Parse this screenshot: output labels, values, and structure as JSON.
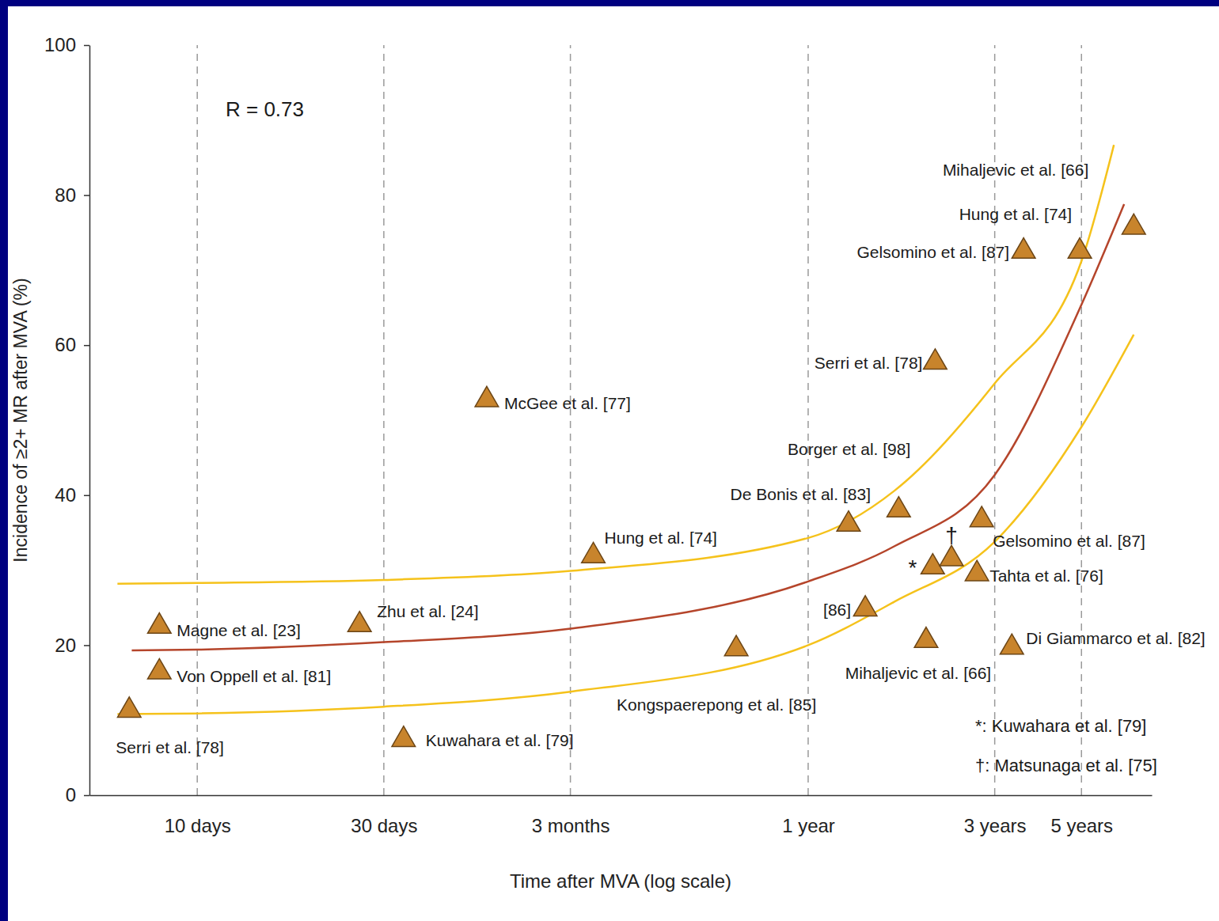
{
  "chart_data": {
    "type": "scatter",
    "x_label": "Time after MVA (log scale)",
    "y_label": "Incidence of ≥2+ MR after MVA (%)",
    "annotations": [
      "R = 0.73",
      "*: Kuwahara et al. [79]",
      "†: Matsunaga et al. [75]"
    ],
    "log": "x",
    "grid": true,
    "xlim": [
      5.3,
      2760
    ],
    "xticks": [
      {
        "value": 10,
        "label": "10 days"
      },
      {
        "value": 30,
        "label": "30 days"
      },
      {
        "value": 90,
        "label": "3 months"
      },
      {
        "value": 365,
        "label": "1 year"
      },
      {
        "value": 1095,
        "label": "3 years"
      },
      {
        "value": 1825,
        "label": "5 years"
      }
    ],
    "ylim": [
      0,
      100
    ],
    "yticks": [
      0,
      20,
      40,
      60,
      80,
      100
    ],
    "series": [
      {
        "type": "scatter",
        "marker": "triangle",
        "color": "#c8842c",
        "x": [
          6.7,
          8.0,
          8.0,
          26,
          55,
          33.7,
          103,
          239,
          511,
          463,
          622,
          771,
          760,
          849,
          1014,
          986,
          731,
          1211,
          1298,
          1807,
          2483
        ],
        "values": [
          11.3,
          16.4,
          22.5,
          22.7,
          52.7,
          7.4,
          31.9,
          19.5,
          24.8,
          36.1,
          38.0,
          57.7,
          30.4,
          31.5,
          36.7,
          29.5,
          20.6,
          19.7,
          72.5,
          72.5,
          75.7
        ],
        "labels": [
          "Serri et al. [78]",
          "Von Oppell et al. [81]",
          "Magne et al. [23]",
          "Zhu et al. [24]",
          "McGee et al. [77]",
          "Kuwahara et al. [79]",
          "Hung et al. [74]",
          "Kongspaerepong et al. [85]",
          "[86]",
          "De Bonis et al. [83]",
          "Borger et al. [98]",
          "Serri et al. [78]",
          "*",
          "†",
          "Gelsomino et al. [87]",
          "Tahta et al. [76]",
          "Mihaljevic et al. [66]",
          "Di Giammarco et al. [82]",
          "Gelsomino et al. [87]",
          "Hung et al. [74]",
          "Mihaljevic et al. [66]"
        ]
      },
      {
        "type": "line",
        "color": "#b5452b",
        "x": [
          6.8,
          10,
          30,
          90,
          365,
          607,
          1095,
          1825,
          2346
        ],
        "values": [
          19.3,
          19.4,
          20.4,
          22.2,
          28.5,
          33.2,
          42.7,
          65.4,
          78.8
        ]
      },
      {
        "type": "line",
        "color": "#f5c21b",
        "x": [
          6.25,
          10,
          30,
          90,
          365,
          607,
          1095,
          1825,
          2209
        ],
        "values": [
          28.2,
          28.3,
          28.7,
          29.9,
          34.3,
          40.6,
          54.9,
          71.2,
          86.7
        ]
      },
      {
        "type": "line",
        "color": "#f5c21b",
        "x": [
          6.25,
          10,
          30,
          90,
          365,
          607,
          1095,
          1825,
          2483
        ],
        "values": [
          10.8,
          10.9,
          11.8,
          13.8,
          20.0,
          25.8,
          33.8,
          49.1,
          61.4
        ]
      }
    ]
  }
}
